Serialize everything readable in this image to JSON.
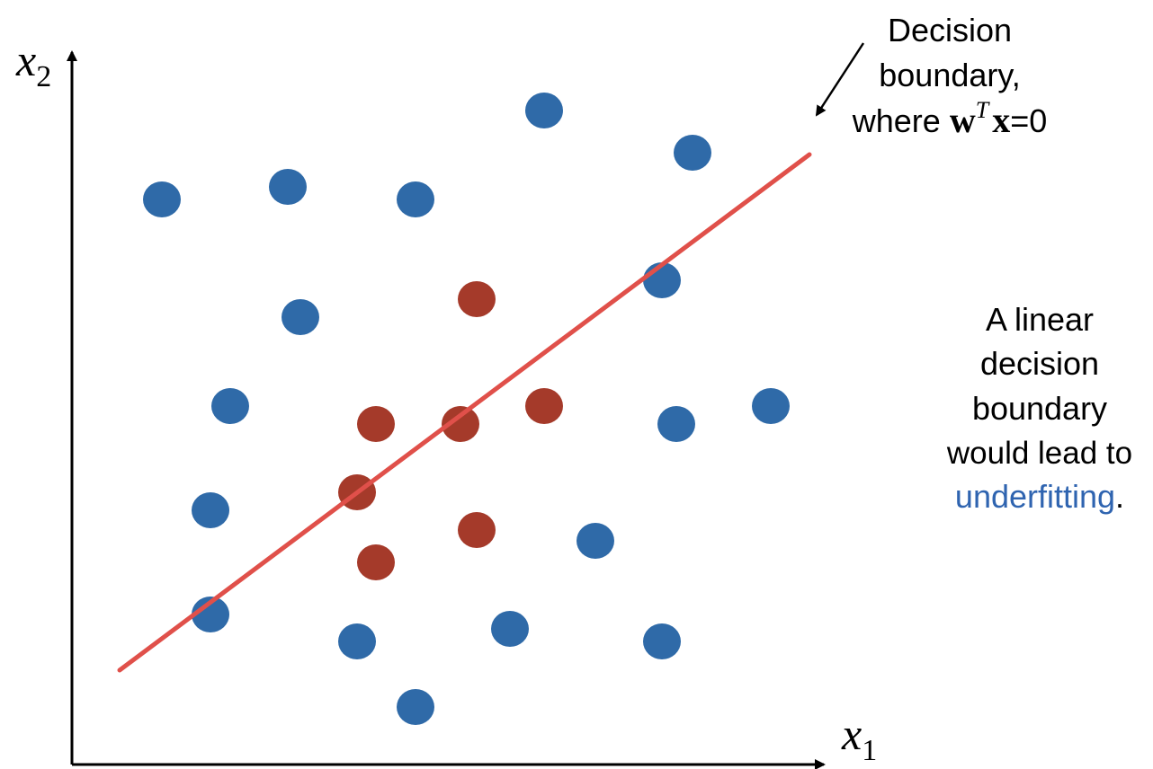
{
  "axes": {
    "x_label": "x",
    "x_subscript": "1",
    "y_label": "x",
    "y_subscript": "2"
  },
  "annotation": {
    "line1": "Decision",
    "line2": "boundary,",
    "line3_prefix": "where ",
    "vec_w": "w",
    "sup_T": "T",
    "vec_x": "x",
    "line3_suffix": "=0"
  },
  "note": {
    "line1": "A linear",
    "line2": "decision",
    "line3": "boundary",
    "line4": "would lead to",
    "highlight": "underfitting",
    "period": "."
  },
  "colors": {
    "class_a": "#2f6aa8",
    "class_b": "#a53a2a",
    "boundary": "#e0504a",
    "highlight": "#2f64b0"
  },
  "chart_data": {
    "type": "scatter",
    "series": [
      {
        "class": "blue",
        "points": [
          [
            180,
            222
          ],
          [
            320,
            208
          ],
          [
            462,
            222
          ],
          [
            605,
            123
          ],
          [
            770,
            170
          ],
          [
            736,
            312
          ],
          [
            334,
            353
          ],
          [
            256,
            452
          ],
          [
            752,
            472
          ],
          [
            857,
            452
          ],
          [
            234,
            568
          ],
          [
            662,
            602
          ],
          [
            234,
            684
          ],
          [
            397,
            714
          ],
          [
            567,
            700
          ],
          [
            736,
            714
          ],
          [
            462,
            787
          ]
        ]
      },
      {
        "class": "red",
        "points": [
          [
            530,
            333
          ],
          [
            418,
            472
          ],
          [
            512,
            472
          ],
          [
            605,
            452
          ],
          [
            397,
            548
          ],
          [
            530,
            590
          ],
          [
            418,
            626
          ]
        ]
      }
    ],
    "boundary": {
      "from": [
        133,
        746
      ],
      "to": [
        900,
        172
      ]
    }
  }
}
